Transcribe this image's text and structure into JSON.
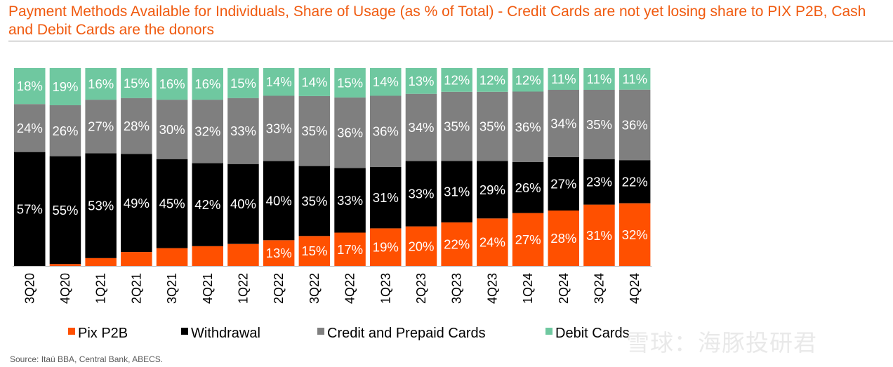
{
  "source": "Source: Itaú BBA, Central Bank, ABECS.",
  "watermark": "雪球：海豚投研君",
  "chart_data": {
    "type": "bar",
    "stacked": true,
    "normalized_percent": true,
    "title": "Payment Methods Available for Individuals, Share of Usage (as % of Total) - Credit Cards are not yet losing share to PIX P2B, Cash and Debit Cards are the donors",
    "xlabel": "",
    "ylabel": "",
    "ylim": [
      0,
      100
    ],
    "grid": false,
    "legend_position": "bottom",
    "categories": [
      "3Q20",
      "4Q20",
      "1Q21",
      "2Q21",
      "3Q21",
      "4Q21",
      "1Q22",
      "2Q22",
      "3Q22",
      "4Q22",
      "1Q23",
      "2Q23",
      "3Q23",
      "4Q23",
      "1Q24",
      "2Q24",
      "3Q24",
      "4Q24"
    ],
    "series": [
      {
        "name": "Pix P2B",
        "color": "#ff5000",
        "text_color": "#ffffff",
        "values": [
          0,
          1,
          4,
          7,
          9,
          10,
          11,
          13,
          15,
          17,
          19,
          20,
          22,
          24,
          27,
          28,
          31,
          32
        ],
        "labels": [
          "",
          "",
          "",
          "",
          "",
          "",
          "",
          "13%",
          "15%",
          "17%",
          "19%",
          "20%",
          "22%",
          "24%",
          "27%",
          "28%",
          "31%",
          "32%"
        ]
      },
      {
        "name": "Withdrawal",
        "color": "#000000",
        "text_color": "#ffffff",
        "values": [
          57,
          55,
          53,
          49,
          45,
          42,
          40,
          40,
          35,
          33,
          31,
          33,
          31,
          29,
          26,
          27,
          23,
          22
        ],
        "labels": [
          "57%",
          "55%",
          "53%",
          "49%",
          "45%",
          "42%",
          "40%",
          "40%",
          "35%",
          "33%",
          "31%",
          "33%",
          "31%",
          "29%",
          "26%",
          "27%",
          "23%",
          "22%"
        ]
      },
      {
        "name": "Credit and Prepaid Cards",
        "color": "#7f7f7f",
        "text_color": "#ffffff",
        "values": [
          24,
          26,
          27,
          28,
          30,
          32,
          33,
          33,
          35,
          36,
          36,
          34,
          35,
          35,
          36,
          34,
          35,
          36
        ],
        "labels": [
          "24%",
          "26%",
          "27%",
          "28%",
          "30%",
          "32%",
          "33%",
          "33%",
          "35%",
          "36%",
          "36%",
          "34%",
          "35%",
          "35%",
          "36%",
          "34%",
          "35%",
          "36%"
        ]
      },
      {
        "name": "Debit Cards",
        "color": "#6fc8a0",
        "text_color": "#ffffff",
        "values": [
          18,
          19,
          16,
          15,
          16,
          16,
          15,
          14,
          14,
          15,
          14,
          13,
          12,
          12,
          12,
          11,
          11,
          11
        ],
        "labels": [
          "18%",
          "19%",
          "16%",
          "15%",
          "16%",
          "16%",
          "15%",
          "14%",
          "14%",
          "15%",
          "14%",
          "13%",
          "12%",
          "12%",
          "12%",
          "11%",
          "11%",
          "11%"
        ]
      }
    ]
  }
}
